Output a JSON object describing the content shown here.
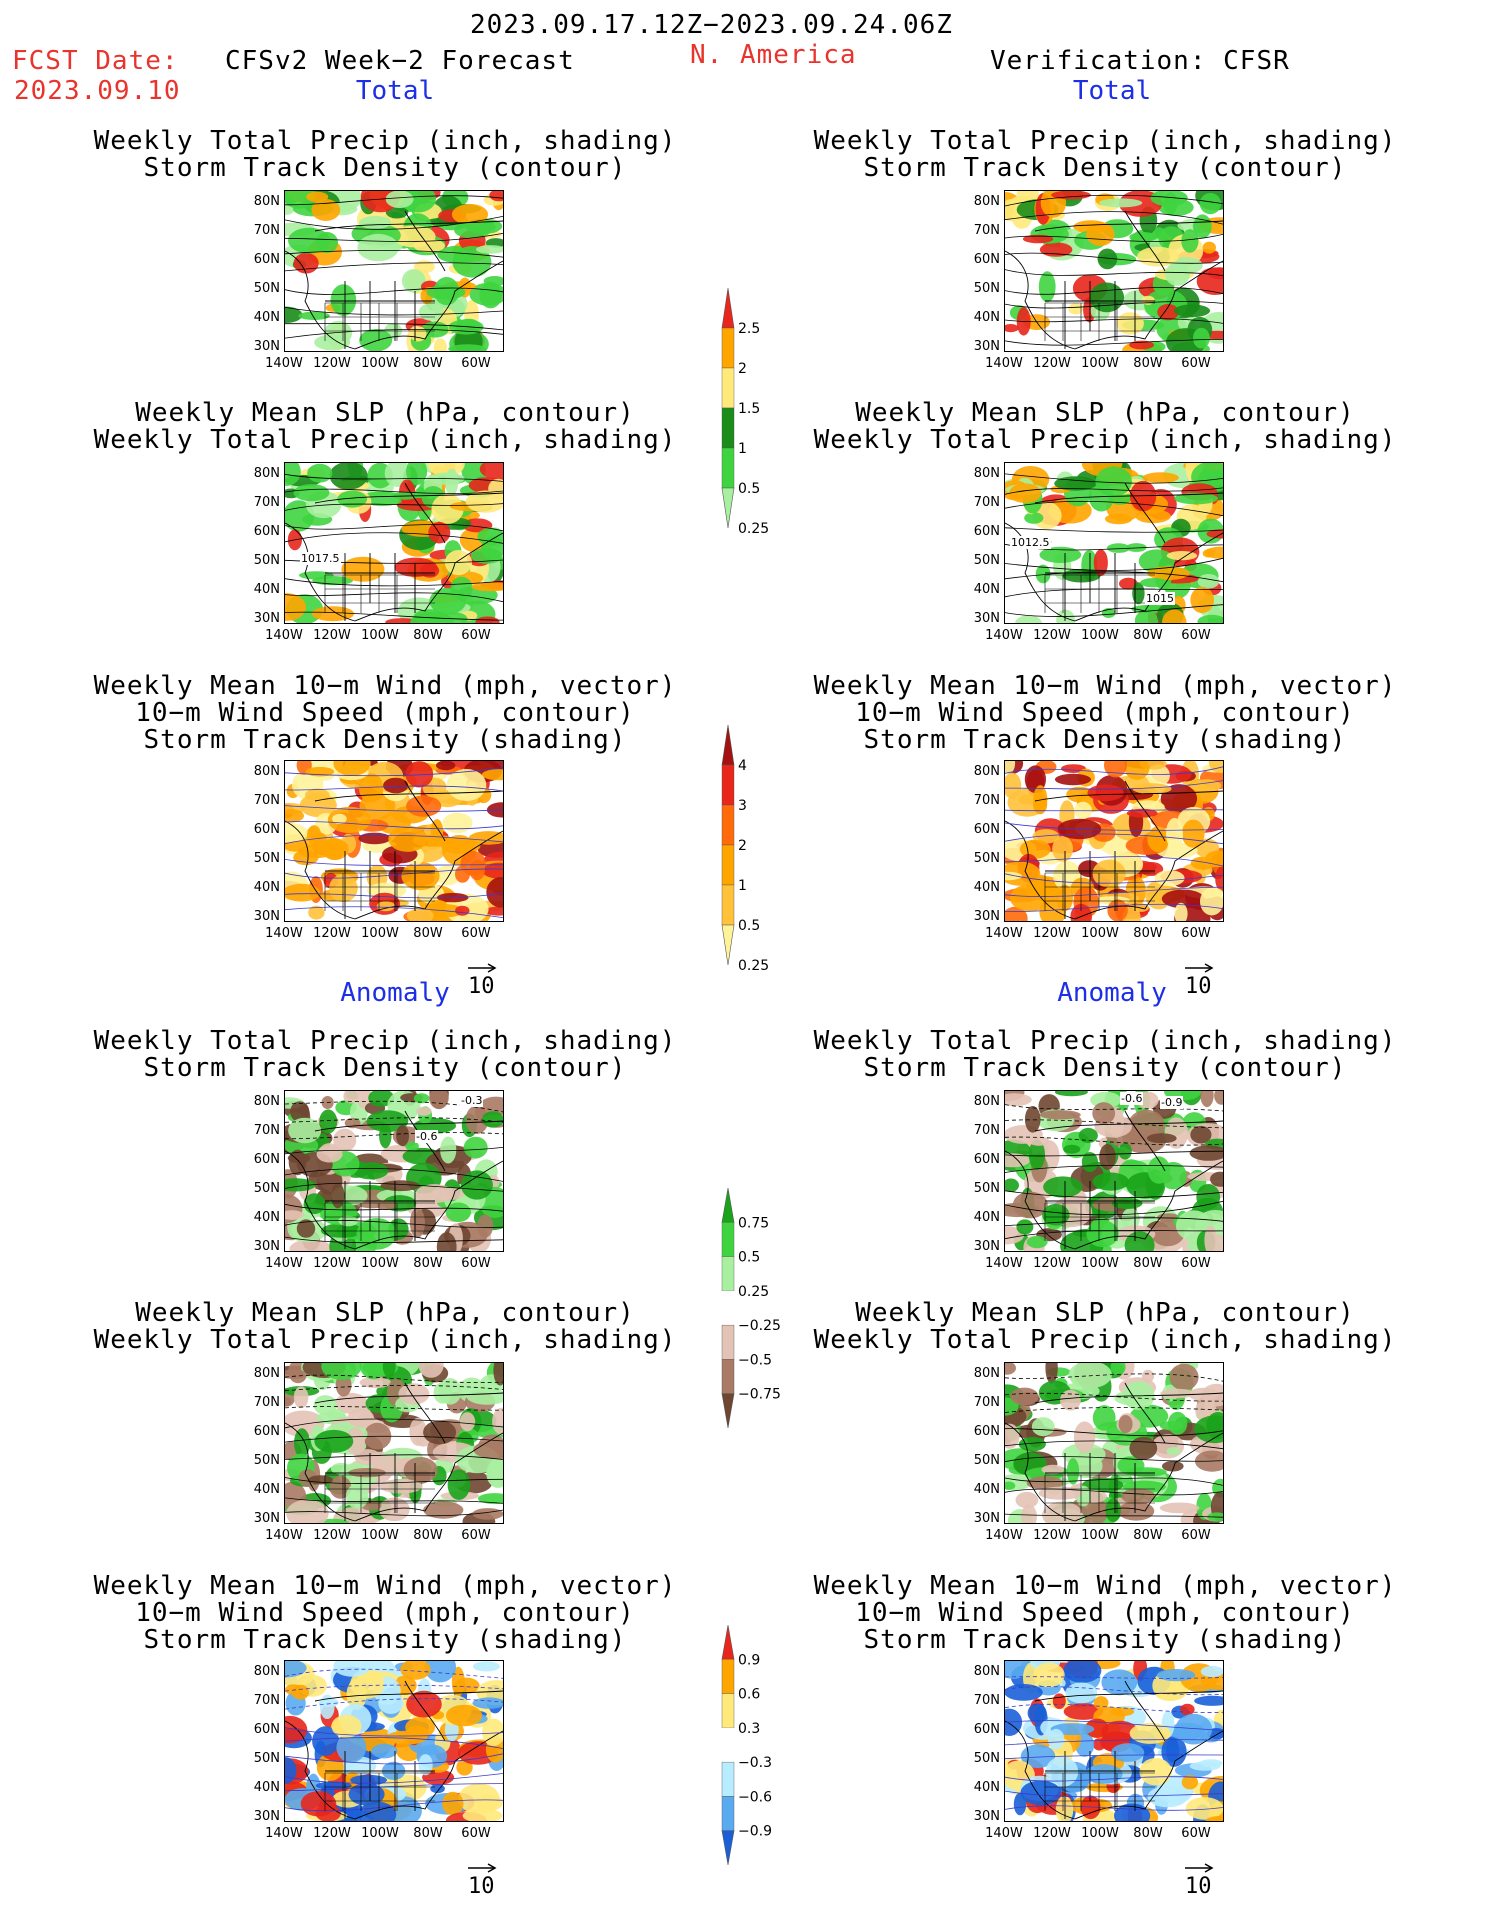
{
  "header": {
    "period": "2023.09.17.12Z−2023.09.24.06Z",
    "fcst_date_label": "FCST Date:",
    "fcst_date_value": "2023.09.10",
    "model_label": "CFSv2 Week−2 Forecast",
    "region": "N. America",
    "verification_label": "Verification: CFSR"
  },
  "sections": {
    "total": "Total",
    "anomaly": "Anomaly"
  },
  "titles": {
    "precip_storm": [
      "Weekly Total Precip (inch, shading)",
      "Storm Track Density (contour)"
    ],
    "slp_precip": [
      "Weekly Mean SLP (hPa, contour)",
      "Weekly Total Precip (inch, shading)"
    ],
    "wind_storm": [
      "Weekly Mean 10−m Wind (mph, vector)",
      "10−m Wind Speed (mph, contour)",
      "Storm Track Density (shading)"
    ]
  },
  "axes": {
    "lat_ticks": [
      "80N",
      "70N",
      "60N",
      "50N",
      "40N",
      "30N"
    ],
    "lon_ticks": [
      "140W",
      "120W",
      "100W",
      "80W",
      "60W"
    ]
  },
  "contour_labels": {
    "fcst_slp_total": "1017.5",
    "obs_slp_total_1": "1012.5",
    "obs_slp_total_2": "1015",
    "fcst_precip_anom": "-0.3",
    "fcst_precip_anom_2": "-0.6",
    "obs_precip_anom_1": "-0.6",
    "obs_precip_anom_2": "-0.9"
  },
  "ref_vector": "10",
  "colorbars": {
    "precip_total": {
      "labels": [
        "2.5",
        "2",
        "1.5",
        "1",
        "0.5",
        "0.25"
      ],
      "colors": [
        "#e8261c",
        "#ffa500",
        "#ffe97a",
        "#1a8c1a",
        "#3fd43f",
        "#a8f0a0"
      ]
    },
    "storm_total": {
      "labels": [
        "4",
        "3",
        "2",
        "1",
        "0.5",
        "0.25"
      ],
      "colors": [
        "#a51010",
        "#e8261c",
        "#ff6a0a",
        "#ffa500",
        "#ffc23a",
        "#fff39a"
      ]
    },
    "precip_anom": {
      "labels": [
        "0.75",
        "0.5",
        "0.25",
        "−0.25",
        "−0.5",
        "−0.75"
      ],
      "colors": [
        "#1aa31a",
        "#3fd43f",
        "#a8f0a0",
        "#ffffff",
        "#e3c3b5",
        "#a97a64",
        "#6e4631"
      ]
    },
    "storm_anom": {
      "labels": [
        "0.9",
        "0.6",
        "0.3",
        "−0.3",
        "−0.6",
        "−0.9"
      ],
      "colors": [
        "#e8261c",
        "#ffa500",
        "#ffe97a",
        "#ffffff",
        "#b8ecff",
        "#5aaaf0",
        "#1a5fd8"
      ]
    }
  }
}
